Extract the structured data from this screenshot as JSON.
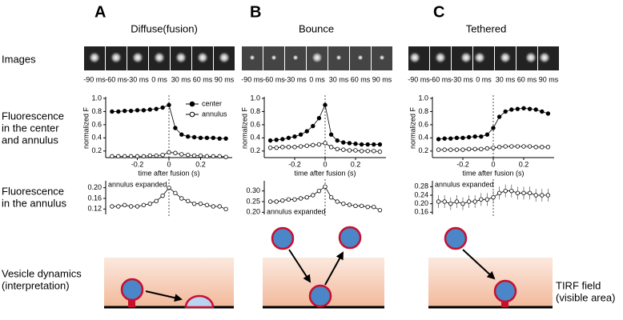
{
  "figure": {
    "panels": [
      {
        "letter": "A",
        "title": "Diffuse(fusion)",
        "image_times": [
          "-90 ms",
          "-60 ms",
          "-30 ms",
          "0 ms",
          "30 ms",
          "60 ms",
          "90 ms"
        ]
      },
      {
        "letter": "B",
        "title": "Bounce",
        "image_times": [
          "-90 ms",
          "-60 ms",
          "-30 ms",
          "0 ms",
          "30 ms",
          "60 ms",
          "90 ms"
        ]
      },
      {
        "letter": "C",
        "title": "Tethered",
        "image_times": [
          "-90 ms",
          "-60 ms",
          "-30 ms",
          "0 ms",
          "30 ms",
          "60 ms",
          "90 ms"
        ]
      }
    ],
    "row_labels": {
      "images": [
        "Images"
      ],
      "center": [
        "Fluorescence",
        "in the center",
        "and  annulus"
      ],
      "annulus": [
        "Fluorescence",
        "in the annulus"
      ],
      "dynamics": [
        "Vesicle dynamics",
        "(interpretation)"
      ],
      "tirf": [
        "TIRF field",
        "(visible area)"
      ]
    }
  },
  "chart_data": [
    {
      "type": "line",
      "xlabel": "time after fusion (s)",
      "ylabel": "normalized F",
      "xlim": [
        -0.4,
        0.4
      ],
      "xticks": [
        -0.2,
        0,
        0.2
      ],
      "ylim": [
        0.1,
        1.0
      ],
      "yticks": [
        0.2,
        0.4,
        0.6,
        0.8,
        {
          "value": 1,
          "label": "1.0"
        }
      ],
      "x": [
        -0.36,
        -0.32,
        -0.28,
        -0.24,
        -0.2,
        -0.16,
        -0.12,
        -0.08,
        -0.04,
        0,
        0.04,
        0.08,
        0.12,
        0.16,
        0.2,
        0.24,
        0.28,
        0.32,
        0.36
      ],
      "series": [
        {
          "name": "center",
          "color": "#000",
          "marker_fill": "#000",
          "values": [
            0.8,
            0.8,
            0.81,
            0.81,
            0.82,
            0.82,
            0.83,
            0.84,
            0.86,
            0.9,
            0.55,
            0.45,
            0.42,
            0.41,
            0.4,
            0.4,
            0.4,
            0.39,
            0.39
          ]
        },
        {
          "name": "annulus",
          "color": "#000",
          "marker_fill": "#fff",
          "values": [
            0.12,
            0.12,
            0.12,
            0.12,
            0.12,
            0.12,
            0.13,
            0.13,
            0.14,
            0.18,
            0.17,
            0.15,
            0.14,
            0.13,
            0.13,
            0.12,
            0.12,
            0.12,
            0.11
          ]
        }
      ]
    },
    {
      "type": "line",
      "xlabel": "time after fusion (s)",
      "ylabel": "normalized F",
      "xlim": [
        -0.4,
        0.4
      ],
      "xticks": [
        -0.2,
        0,
        0.2
      ],
      "ylim": [
        0.1,
        1.0
      ],
      "yticks": [
        0.2,
        0.4,
        0.6,
        0.8,
        {
          "value": 1,
          "label": "1.0"
        }
      ],
      "x": [
        -0.36,
        -0.32,
        -0.28,
        -0.24,
        -0.2,
        -0.16,
        -0.12,
        -0.08,
        -0.04,
        0,
        0.04,
        0.08,
        0.12,
        0.16,
        0.2,
        0.24,
        0.28,
        0.32,
        0.36
      ],
      "series": [
        {
          "color": "#000",
          "marker_fill": "#000",
          "values": [
            0.36,
            0.37,
            0.38,
            0.4,
            0.42,
            0.45,
            0.5,
            0.58,
            0.7,
            0.9,
            0.45,
            0.36,
            0.33,
            0.32,
            0.31,
            0.3,
            0.3,
            0.3,
            0.3
          ]
        },
        {
          "color": "#000",
          "marker_fill": "#fff",
          "values": [
            0.25,
            0.25,
            0.26,
            0.26,
            0.26,
            0.27,
            0.28,
            0.29,
            0.3,
            0.32,
            0.26,
            0.23,
            0.22,
            0.21,
            0.21,
            0.2,
            0.2,
            0.2,
            0.19
          ]
        }
      ]
    },
    {
      "type": "line",
      "xlabel": "time after fusion (s)",
      "ylabel": "normalized F",
      "xlim": [
        -0.4,
        0.4
      ],
      "xticks": [
        -0.2,
        0,
        0.2
      ],
      "ylim": [
        0.1,
        1.0
      ],
      "yticks": [
        0.2,
        0.4,
        0.6,
        0.8,
        {
          "value": 1,
          "label": "1.0"
        }
      ],
      "x": [
        -0.36,
        -0.32,
        -0.28,
        -0.24,
        -0.2,
        -0.16,
        -0.12,
        -0.08,
        -0.04,
        0,
        0.04,
        0.08,
        0.12,
        0.16,
        0.2,
        0.24,
        0.28,
        0.32,
        0.36
      ],
      "series": [
        {
          "color": "#000",
          "marker_fill": "#000",
          "values": [
            0.38,
            0.39,
            0.39,
            0.4,
            0.4,
            0.41,
            0.42,
            0.42,
            0.45,
            0.55,
            0.72,
            0.8,
            0.83,
            0.84,
            0.85,
            0.84,
            0.83,
            0.8,
            0.77
          ]
        },
        {
          "color": "#000",
          "marker_fill": "#fff",
          "values": [
            0.22,
            0.22,
            0.22,
            0.22,
            0.22,
            0.23,
            0.23,
            0.23,
            0.24,
            0.25,
            0.26,
            0.27,
            0.27,
            0.27,
            0.27,
            0.27,
            0.26,
            0.26,
            0.26
          ]
        }
      ]
    },
    {
      "type": "line",
      "annotation": "annulus expanded",
      "xlim": [
        -0.4,
        0.4
      ],
      "ylim": [
        0.1,
        0.22
      ],
      "yticks": [
        0.12,
        0.16,
        {
          "value": 0.2,
          "label": "0.20"
        }
      ],
      "x": [
        -0.36,
        -0.32,
        -0.28,
        -0.24,
        -0.2,
        -0.16,
        -0.12,
        -0.08,
        -0.04,
        0,
        0.04,
        0.08,
        0.12,
        0.16,
        0.2,
        0.24,
        0.28,
        0.32,
        0.36
      ],
      "series": [
        {
          "color": "#000",
          "marker_fill": "#fff",
          "values": [
            0.13,
            0.13,
            0.135,
            0.13,
            0.13,
            0.135,
            0.14,
            0.15,
            0.17,
            0.2,
            0.18,
            0.16,
            0.15,
            0.14,
            0.14,
            0.135,
            0.13,
            0.13,
            0.12
          ]
        }
      ]
    },
    {
      "type": "line",
      "annotation": "annulus expanded",
      "xlim": [
        -0.4,
        0.4
      ],
      "ylim": [
        0.19,
        0.34
      ],
      "yticks": [
        {
          "value": 0.2,
          "label": "0.20"
        },
        0.25,
        {
          "value": 0.3,
          "label": "0.30"
        }
      ],
      "x": [
        -0.36,
        -0.32,
        -0.28,
        -0.24,
        -0.2,
        -0.16,
        -0.12,
        -0.08,
        -0.04,
        0,
        0.04,
        0.08,
        0.12,
        0.16,
        0.2,
        0.24,
        0.28,
        0.32,
        0.36
      ],
      "series": [
        {
          "color": "#000",
          "marker_fill": "#fff",
          "values": [
            0.25,
            0.25,
            0.255,
            0.26,
            0.26,
            0.265,
            0.27,
            0.28,
            0.3,
            0.32,
            0.27,
            0.25,
            0.24,
            0.235,
            0.23,
            0.23,
            0.225,
            0.225,
            0.21
          ]
        }
      ]
    },
    {
      "type": "line",
      "annotation": "annulus expanded",
      "xlim": [
        -0.4,
        0.4
      ],
      "ylim": [
        0.15,
        0.3
      ],
      "yticks": [
        0.16,
        {
          "value": 0.2,
          "label": "0.20"
        },
        0.24,
        0.28
      ],
      "x": [
        -0.36,
        -0.32,
        -0.28,
        -0.24,
        -0.2,
        -0.16,
        -0.12,
        -0.08,
        -0.04,
        0,
        0.04,
        0.08,
        0.12,
        0.16,
        0.2,
        0.24,
        0.28,
        0.32,
        0.36
      ],
      "series": [
        {
          "color": "#000",
          "marker_fill": "#fff",
          "values": [
            0.21,
            0.21,
            0.2,
            0.21,
            0.2,
            0.21,
            0.21,
            0.22,
            0.22,
            0.23,
            0.25,
            0.26,
            0.26,
            0.25,
            0.25,
            0.25,
            0.24,
            0.24,
            0.24
          ],
          "errors": [
            0.03,
            0.03,
            0.03,
            0.03,
            0.03,
            0.03,
            0.03,
            0.03,
            0.03,
            0.03,
            0.03,
            0.03,
            0.03,
            0.03,
            0.03,
            0.03,
            0.03,
            0.03,
            0.03
          ]
        }
      ]
    }
  ]
}
